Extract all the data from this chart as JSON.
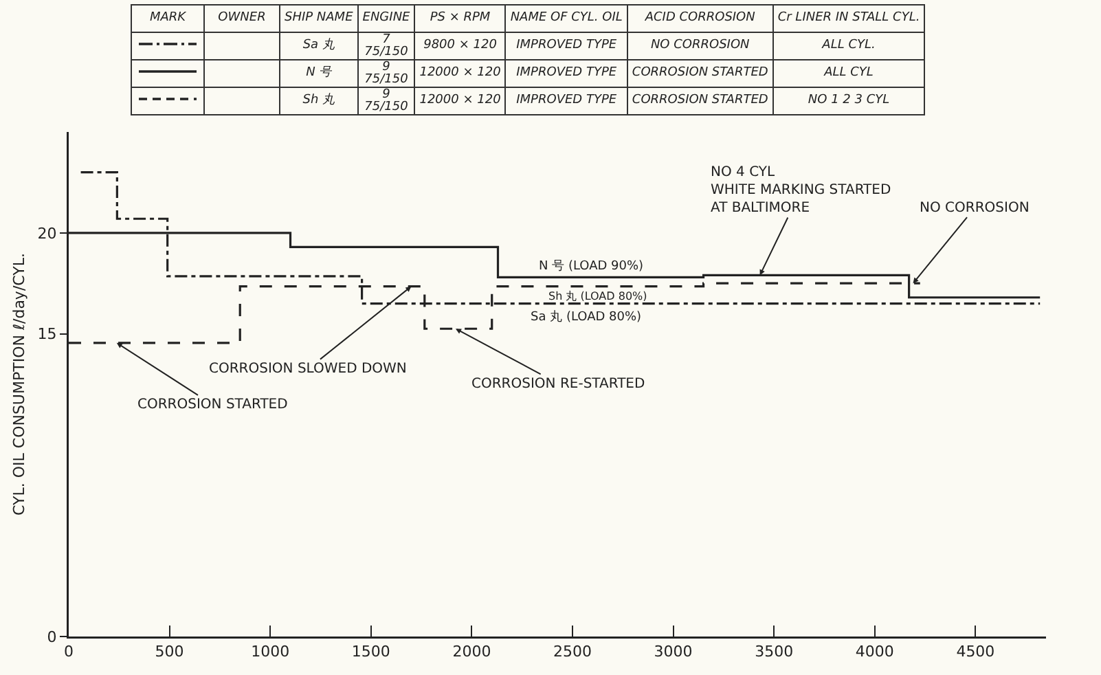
{
  "chart_data": {
    "type": "step",
    "xlabel": null,
    "ylabel": "CYL. OIL CONSUMPTION ℓ/day/CYL.",
    "xlim": [
      0,
      4850
    ],
    "xticks": [
      0,
      500,
      1000,
      1500,
      2000,
      2500,
      3000,
      3500,
      4000,
      4500
    ],
    "ylim": [
      0,
      25
    ],
    "yticks": [
      0,
      15,
      20
    ],
    "grid": false,
    "legend": "top",
    "marker": "none",
    "series": [
      {
        "name": "Sa 丸 (LOAD 80%)",
        "color": "#222222",
        "line_style": "dashdot",
        "x": [
          60,
          240,
          490,
          1455,
          4820
        ],
        "values": [
          23,
          20.7,
          17.85,
          16.5,
          16.5
        ]
      },
      {
        "name": "N 号 (LOAD 90%)",
        "color": "#222222",
        "line_style": "solid",
        "x": [
          0,
          1100,
          2130,
          3150,
          4170,
          4820
        ],
        "values": [
          20,
          19.3,
          17.8,
          17.9,
          16.8,
          16.8
        ]
      },
      {
        "name": "Sh 丸 (LOAD 80%)",
        "color": "#222222",
        "line_style": "dashed",
        "x": [
          0,
          850,
          1766,
          2100,
          3150,
          4225
        ],
        "values": [
          14.55,
          17.35,
          15.25,
          17.35,
          17.5,
          17.5
        ]
      }
    ],
    "annotations": [
      "MARK",
      "OWNER",
      "SHIP NAME",
      "ENGINE",
      "PS × RPM",
      "NAME OF CYL. OIL",
      "ACID CORROSION",
      "Cr LINER IN STALL CYL.",
      "Sa 丸",
      "7\n75/150",
      "9800 × 120",
      "IMPROVED TYPE",
      "NO CORROSION",
      "ALL CYL.",
      "N 号",
      "9\n75/150",
      "12000 × 120",
      "IMPROVED TYPE",
      "CORROSION STARTED",
      "ALL CYL",
      "Sh 丸",
      "9\n75/150",
      "12000 × 120",
      "IMPROVED TYPE",
      "CORROSION STARTED",
      "NO 1 2 3 CYL",
      {
        "text": "CORROSION STARTED",
        "x": 238,
        "y": 14.55
      },
      {
        "text": "CORROSION SLOWED DOWN",
        "x": 1700,
        "y": 17.35
      },
      {
        "text": "CORROSION RE-STARTED",
        "x": 1920,
        "y": 15.25
      },
      {
        "text": "NO 4 CYL\nWHITE MARKING STARTED\nAT BALTIMORE",
        "x": 3430,
        "y": 17.9
      },
      {
        "text": "NO CORROSION",
        "x": 4190,
        "y": 17.5
      }
    ]
  }
}
